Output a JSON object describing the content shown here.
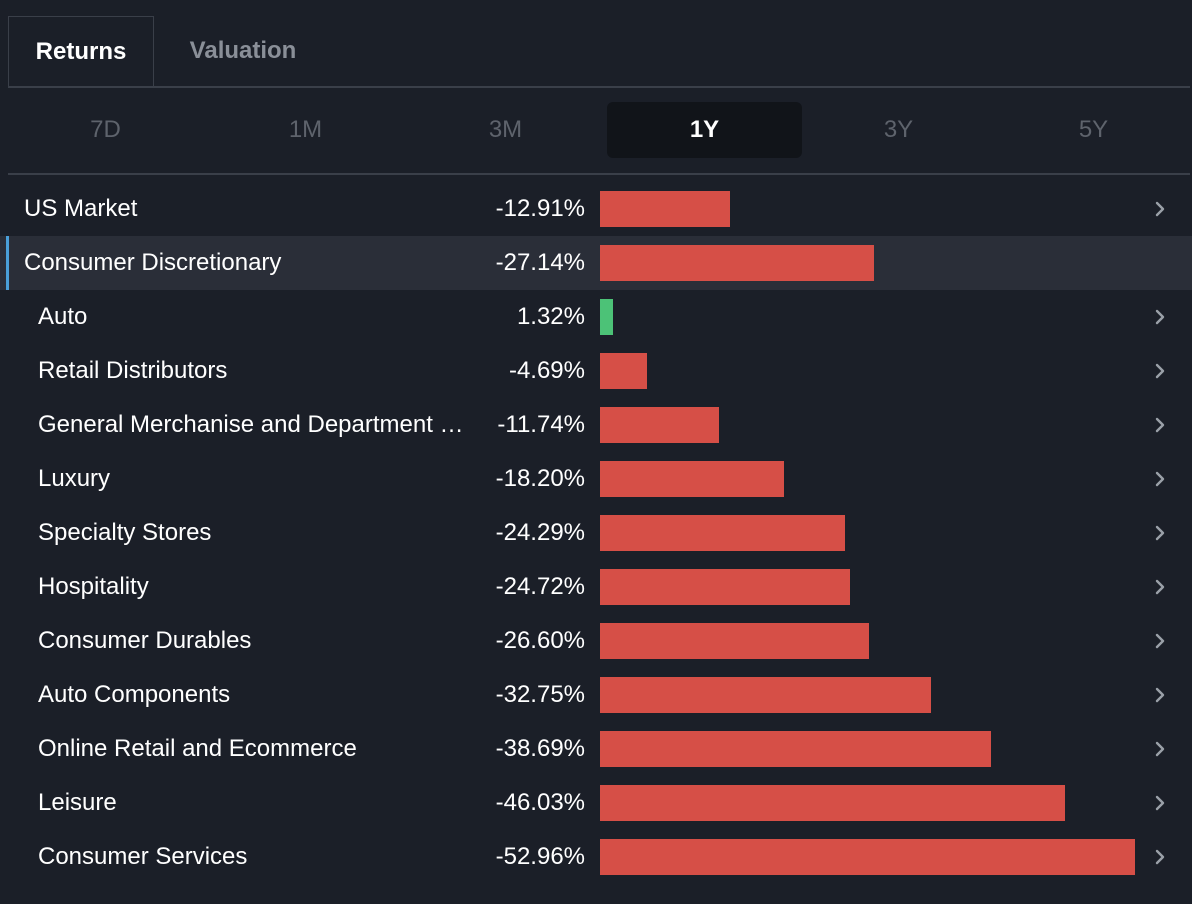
{
  "tabs": [
    {
      "label": "Returns",
      "active": true
    },
    {
      "label": "Valuation",
      "active": false
    }
  ],
  "periods": [
    {
      "label": "7D",
      "active": false
    },
    {
      "label": "1M",
      "active": false
    },
    {
      "label": "3M",
      "active": false
    },
    {
      "label": "1Y",
      "active": true
    },
    {
      "label": "3Y",
      "active": false
    },
    {
      "label": "5Y",
      "active": false
    }
  ],
  "colors": {
    "negative": "#d64f47",
    "positive": "#4cc277",
    "highlight_accent": "#4a9fd8"
  },
  "rows": [
    {
      "name": "US Market",
      "value": "-12.91%",
      "pct": -12.91,
      "level": 0,
      "chevron": true,
      "highlight": false
    },
    {
      "name": "Consumer Discretionary",
      "value": "-27.14%",
      "pct": -27.14,
      "level": 0,
      "chevron": false,
      "highlight": true
    },
    {
      "name": "Auto",
      "value": "1.32%",
      "pct": 1.32,
      "level": 1,
      "chevron": true,
      "highlight": false
    },
    {
      "name": "Retail Distributors",
      "value": "-4.69%",
      "pct": -4.69,
      "level": 1,
      "chevron": true,
      "highlight": false
    },
    {
      "name": "General Merchanise and Department …",
      "value": "-11.74%",
      "pct": -11.74,
      "level": 1,
      "chevron": true,
      "highlight": false
    },
    {
      "name": "Luxury",
      "value": "-18.20%",
      "pct": -18.2,
      "level": 1,
      "chevron": true,
      "highlight": false
    },
    {
      "name": "Specialty Stores",
      "value": "-24.29%",
      "pct": -24.29,
      "level": 1,
      "chevron": true,
      "highlight": false
    },
    {
      "name": "Hospitality",
      "value": "-24.72%",
      "pct": -24.72,
      "level": 1,
      "chevron": true,
      "highlight": false
    },
    {
      "name": "Consumer Durables",
      "value": "-26.60%",
      "pct": -26.6,
      "level": 1,
      "chevron": true,
      "highlight": false
    },
    {
      "name": "Auto Components",
      "value": "-32.75%",
      "pct": -32.75,
      "level": 1,
      "chevron": true,
      "highlight": false
    },
    {
      "name": "Online Retail and Ecommerce",
      "value": "-38.69%",
      "pct": -38.69,
      "level": 1,
      "chevron": true,
      "highlight": false
    },
    {
      "name": "Leisure",
      "value": "-46.03%",
      "pct": -46.03,
      "level": 1,
      "chevron": true,
      "highlight": false
    },
    {
      "name": "Consumer Services",
      "value": "-52.96%",
      "pct": -52.96,
      "level": 1,
      "chevron": true,
      "highlight": false
    }
  ]
}
